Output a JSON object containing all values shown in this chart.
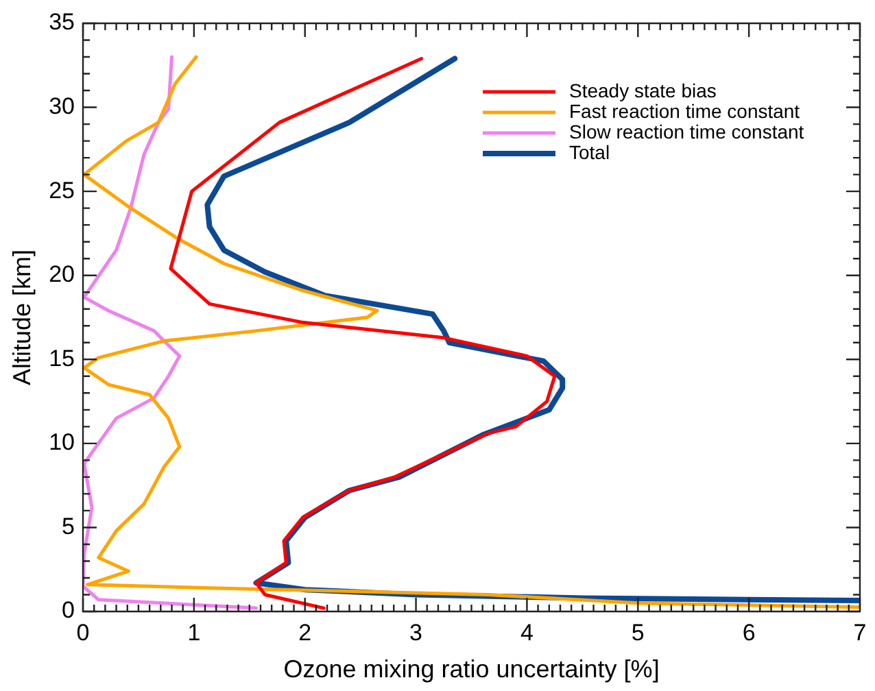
{
  "chart_data": {
    "type": "line",
    "xlabel": "Ozone mixing ratio uncertainty [%]",
    "ylabel": "Altitude [km]",
    "xlim": [
      0,
      7
    ],
    "xticks": [
      0,
      1,
      2,
      3,
      4,
      5,
      6,
      7
    ],
    "ylim": [
      0,
      35
    ],
    "yticks": [
      0,
      5,
      10,
      15,
      20,
      25,
      30,
      35
    ],
    "grid": false,
    "legend": "top right",
    "marker": "none",
    "line_style": "solid",
    "series": [
      {
        "name": "Steady state bias",
        "color": "#ff0000",
        "x": [
          3.05,
          1.77,
          0.98,
          0.79,
          1.14,
          1.98,
          3.24,
          4.0,
          4.25,
          4.18,
          3.9,
          3.65,
          2.81,
          2.4,
          1.98,
          1.81,
          1.83,
          1.56,
          1.64,
          2.17
        ],
        "values": [
          32.9,
          29.1,
          25,
          20.4,
          18.3,
          17.2,
          16.3,
          15.2,
          14,
          12.5,
          11,
          10.6,
          8,
          7.2,
          5.6,
          4.2,
          2.9,
          1.7,
          1,
          0.2
        ]
      },
      {
        "name": "Fast reaction time constant",
        "color": "#ffa500",
        "x": [
          1.02,
          0.83,
          0.68,
          0.39,
          0.01,
          0.43,
          0.85,
          1.27,
          1.98,
          2.65,
          2.56,
          1.56,
          0.73,
          0.14,
          0.01,
          0.23,
          0.6,
          0.77,
          0.87,
          0.73,
          0.55,
          0.3,
          0.14,
          0.41,
          0.04,
          1.14,
          3.65,
          5,
          7
        ],
        "values": [
          33,
          31.4,
          29.1,
          28,
          26,
          24,
          22.2,
          20.7,
          19.1,
          17.9,
          17.5,
          16.7,
          16.1,
          15.1,
          14.5,
          13.5,
          12.9,
          11.5,
          9.8,
          8.6,
          6.4,
          4.8,
          3.2,
          2.4,
          1.6,
          1.4,
          1,
          0.5,
          0.25
        ]
      },
      {
        "name": "Slow reaction time constant",
        "color": "#ee82ee",
        "x": [
          0.8,
          0.77,
          0.68,
          0.55,
          0.43,
          0.3,
          0.01,
          0.23,
          0.64,
          0.73,
          0.87,
          0.77,
          0.64,
          0.3,
          0.01,
          0.08,
          0.01,
          0,
          0.14,
          1.56
        ],
        "values": [
          33,
          29.9,
          29.1,
          27.2,
          24,
          21.5,
          18.7,
          17.9,
          16.7,
          16.1,
          15.2,
          14,
          12.7,
          11.5,
          8.8,
          6.2,
          3.4,
          1.5,
          0.7,
          0.2
        ]
      },
      {
        "name": "Total",
        "color": "#0d4a94",
        "x": [
          3.35,
          2.4,
          1.27,
          1.12,
          1.14,
          1.27,
          1.64,
          2.18,
          3.15,
          3.25,
          3.3,
          4.15,
          4.32,
          4.32,
          4.2,
          3.6,
          2.85,
          2.4,
          2.0,
          1.83,
          1.85,
          1.56,
          2.0,
          3.0,
          4.5,
          6,
          7
        ],
        "values": [
          32.9,
          29.1,
          25.9,
          24.2,
          22.9,
          21.5,
          20.2,
          18.8,
          17.7,
          16.7,
          16,
          14.9,
          13.8,
          13.3,
          12,
          10.5,
          8,
          7.2,
          5.6,
          4.2,
          2.9,
          1.7,
          1.3,
          1,
          0.8,
          0.7,
          0.65
        ]
      }
    ]
  }
}
